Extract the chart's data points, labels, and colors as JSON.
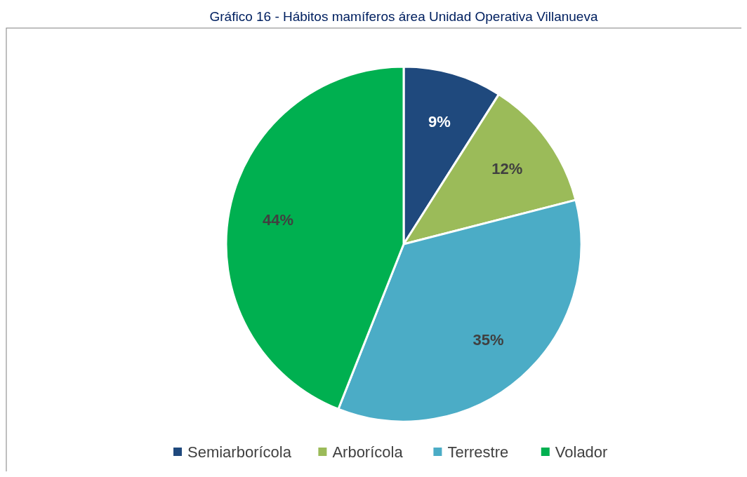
{
  "chart_data": {
    "type": "pie",
    "title": "Gráfico 16 - Hábitos mamíferos área Unidad Operativa Villanueva",
    "categories": [
      "Semiarborícola",
      "Arborícola",
      "Terrestre",
      "Volador"
    ],
    "values": [
      9,
      12,
      35,
      44
    ],
    "colors": [
      "#1f497d",
      "#9bbb59",
      "#4bacc6",
      "#00b050"
    ],
    "value_labels": [
      "9%",
      "12%",
      "35%",
      "44%"
    ],
    "legend": "bottom"
  }
}
